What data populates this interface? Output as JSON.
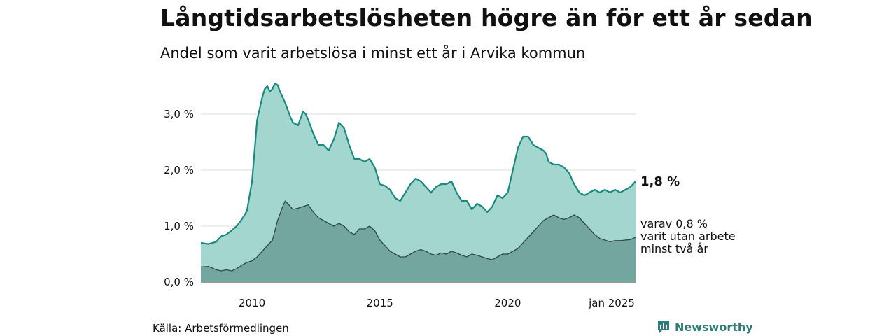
{
  "title": "Långtidsarbetslösheten högre än för ett år sedan",
  "subtitle": "Andel som varit arbetslösa i minst ett år i Arvika kommun",
  "source": "Källa: Arbetsförmedlingen",
  "brand": "Newsworthy",
  "colors": {
    "main_line": "#1a8a7e",
    "main_fill": "#a3d6cf",
    "sub_line": "#2f4a44",
    "sub_fill": "#73a69e",
    "grid": "#dddddd"
  },
  "icons": {
    "brand": "newsworthy-logo-icon"
  },
  "chart_data": {
    "type": "area",
    "x_label": "",
    "y_label": "",
    "x_range": [
      2008.0,
      2025.0
    ],
    "y_range": [
      0,
      3.6
    ],
    "grid": "horizontal",
    "x_ticks": [
      {
        "value": 2010,
        "label": "2010"
      },
      {
        "value": 2015,
        "label": "2015"
      },
      {
        "value": 2020,
        "label": "2020"
      },
      {
        "value": 2025,
        "label": "jan 2025"
      }
    ],
    "y_ticks": [
      {
        "value": 0.0,
        "label": "0,0 %"
      },
      {
        "value": 1.0,
        "label": "1,0 %"
      },
      {
        "value": 2.0,
        "label": "2,0 %"
      },
      {
        "value": 3.0,
        "label": "3,0 %"
      }
    ],
    "series": [
      {
        "end_label": "1,8 %",
        "x": [
          2008.0,
          2008.3,
          2008.6,
          2008.8,
          2009.0,
          2009.2,
          2009.4,
          2009.6,
          2009.8,
          2010.0,
          2010.2,
          2010.4,
          2010.5,
          2010.6,
          2010.7,
          2010.8,
          2010.9,
          2011.0,
          2011.1,
          2011.3,
          2011.5,
          2011.6,
          2011.8,
          2012.0,
          2012.1,
          2012.2,
          2012.4,
          2012.6,
          2012.8,
          2013.0,
          2013.2,
          2013.4,
          2013.6,
          2013.8,
          2014.0,
          2014.2,
          2014.4,
          2014.6,
          2014.8,
          2015.0,
          2015.2,
          2015.4,
          2015.6,
          2015.8,
          2016.0,
          2016.2,
          2016.4,
          2016.6,
          2016.8,
          2017.0,
          2017.2,
          2017.4,
          2017.6,
          2017.8,
          2018.0,
          2018.2,
          2018.4,
          2018.6,
          2018.8,
          2019.0,
          2019.2,
          2019.4,
          2019.6,
          2019.8,
          2020.0,
          2020.2,
          2020.4,
          2020.6,
          2020.8,
          2021.0,
          2021.2,
          2021.4,
          2021.5,
          2021.6,
          2021.8,
          2022.0,
          2022.2,
          2022.4,
          2022.6,
          2022.8,
          2023.0,
          2023.2,
          2023.4,
          2023.6,
          2023.8,
          2024.0,
          2024.2,
          2024.4,
          2024.6,
          2024.8,
          2025.0
        ],
        "y": [
          0.7,
          0.68,
          0.72,
          0.82,
          0.85,
          0.92,
          1.0,
          1.12,
          1.27,
          1.8,
          2.9,
          3.3,
          3.45,
          3.5,
          3.4,
          3.45,
          3.55,
          3.52,
          3.4,
          3.2,
          2.95,
          2.85,
          2.8,
          3.05,
          3.0,
          2.9,
          2.65,
          2.45,
          2.45,
          2.35,
          2.55,
          2.85,
          2.75,
          2.45,
          2.2,
          2.2,
          2.15,
          2.2,
          2.05,
          1.75,
          1.72,
          1.65,
          1.5,
          1.45,
          1.6,
          1.75,
          1.85,
          1.8,
          1.7,
          1.6,
          1.7,
          1.75,
          1.75,
          1.8,
          1.6,
          1.45,
          1.45,
          1.3,
          1.4,
          1.35,
          1.25,
          1.35,
          1.55,
          1.5,
          1.6,
          2.0,
          2.4,
          2.6,
          2.6,
          2.45,
          2.4,
          2.35,
          2.3,
          2.15,
          2.1,
          2.1,
          2.05,
          1.95,
          1.75,
          1.6,
          1.55,
          1.6,
          1.65,
          1.6,
          1.65,
          1.6,
          1.65,
          1.6,
          1.65,
          1.7,
          1.8
        ]
      },
      {
        "end_label_lines": [
          "varav 0,8 %",
          "varit utan arbete",
          "minst två år"
        ],
        "x": [
          2008.0,
          2008.3,
          2008.6,
          2008.8,
          2009.0,
          2009.2,
          2009.4,
          2009.6,
          2009.8,
          2010.0,
          2010.2,
          2010.4,
          2010.6,
          2010.8,
          2011.0,
          2011.2,
          2011.3,
          2011.4,
          2011.6,
          2011.8,
          2012.0,
          2012.2,
          2012.4,
          2012.6,
          2012.8,
          2013.0,
          2013.2,
          2013.4,
          2013.6,
          2013.8,
          2014.0,
          2014.2,
          2014.4,
          2014.6,
          2014.8,
          2015.0,
          2015.2,
          2015.4,
          2015.6,
          2015.8,
          2016.0,
          2016.2,
          2016.4,
          2016.6,
          2016.8,
          2017.0,
          2017.2,
          2017.4,
          2017.6,
          2017.8,
          2018.0,
          2018.2,
          2018.4,
          2018.6,
          2018.8,
          2019.0,
          2019.2,
          2019.4,
          2019.6,
          2019.8,
          2020.0,
          2020.2,
          2020.4,
          2020.6,
          2020.8,
          2021.0,
          2021.2,
          2021.4,
          2021.6,
          2021.8,
          2022.0,
          2022.2,
          2022.4,
          2022.6,
          2022.8,
          2023.0,
          2023.2,
          2023.4,
          2023.6,
          2023.8,
          2024.0,
          2024.2,
          2024.4,
          2024.6,
          2024.8,
          2025.0
        ],
        "y": [
          0.27,
          0.28,
          0.22,
          0.2,
          0.22,
          0.2,
          0.24,
          0.3,
          0.35,
          0.38,
          0.45,
          0.55,
          0.65,
          0.75,
          1.1,
          1.35,
          1.45,
          1.4,
          1.3,
          1.32,
          1.35,
          1.38,
          1.25,
          1.15,
          1.1,
          1.05,
          1.0,
          1.05,
          1.0,
          0.9,
          0.85,
          0.95,
          0.95,
          1.0,
          0.92,
          0.75,
          0.65,
          0.55,
          0.5,
          0.45,
          0.45,
          0.5,
          0.55,
          0.58,
          0.55,
          0.5,
          0.48,
          0.52,
          0.5,
          0.55,
          0.52,
          0.48,
          0.45,
          0.5,
          0.48,
          0.45,
          0.42,
          0.4,
          0.45,
          0.5,
          0.5,
          0.55,
          0.6,
          0.7,
          0.8,
          0.9,
          1.0,
          1.1,
          1.15,
          1.2,
          1.15,
          1.12,
          1.15,
          1.2,
          1.15,
          1.05,
          0.95,
          0.85,
          0.78,
          0.75,
          0.72,
          0.74,
          0.74,
          0.75,
          0.76,
          0.8
        ]
      }
    ]
  }
}
